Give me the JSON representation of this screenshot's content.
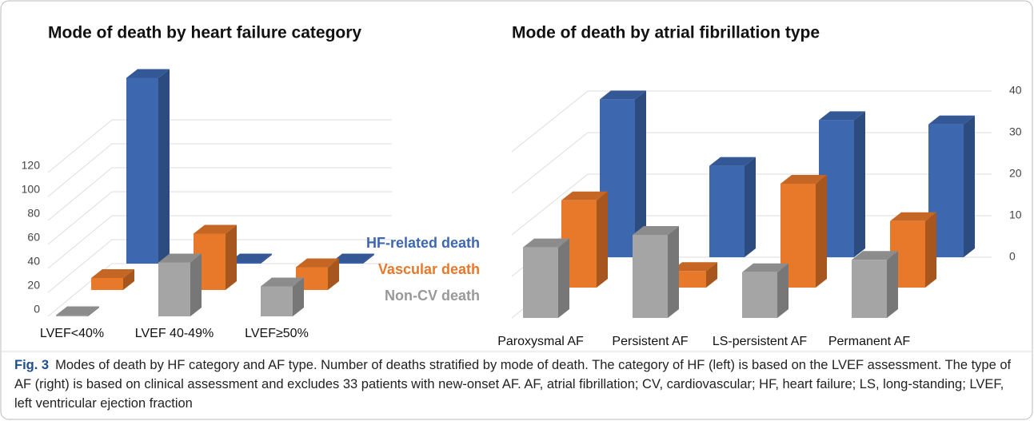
{
  "chart_data": [
    {
      "type": "bar3d",
      "title": "Mode of death by heart failure category",
      "categories": [
        "LVEF<40%",
        "LVEF 40-49%",
        "LVEF≥50%"
      ],
      "series": [
        {
          "name": "HF-related death",
          "color": "#3d68b0",
          "values": [
            155,
            1,
            1
          ]
        },
        {
          "name": "Vascular death",
          "color": "#e8782a",
          "values": [
            10,
            47,
            19
          ]
        },
        {
          "name": "Non-CV death",
          "color": "#a5a5a5",
          "values": [
            1,
            45,
            25
          ]
        }
      ],
      "ylim": [
        0,
        160
      ],
      "yticks": [
        0,
        20,
        40,
        60,
        80,
        100,
        120
      ],
      "grid": true
    },
    {
      "type": "bar3d",
      "title": "Mode of death by atrial fibrillation type",
      "categories": [
        "Paroxysmal AF",
        "Persistent AF",
        "LS-persistent AF",
        "Permanent AF"
      ],
      "series": [
        {
          "color": "#3d68b0",
          "values": [
            38,
            22,
            33,
            32
          ]
        },
        {
          "color": "#e8782a",
          "values": [
            21,
            4,
            25,
            16
          ]
        },
        {
          "color": "#a5a5a5",
          "values": [
            17,
            20,
            11,
            14
          ]
        }
      ],
      "ylim": [
        0,
        40
      ],
      "yticks": [
        0,
        10,
        20,
        30,
        40
      ],
      "grid": true
    }
  ],
  "caption": {
    "label": "Fig. 3",
    "text": "Modes of death by HF category and AF type. Number of deaths stratified by mode of death. The category of HF (left) is based on the LVEF assessment. The type of AF (right) is based on clinical assessment and excludes 33 patients with new-onset AF. AF, atrial fibrillation; CV, cardiovascular; HF, heart failure; LS, long-standing; LVEF, left ventricular ejection fraction"
  }
}
